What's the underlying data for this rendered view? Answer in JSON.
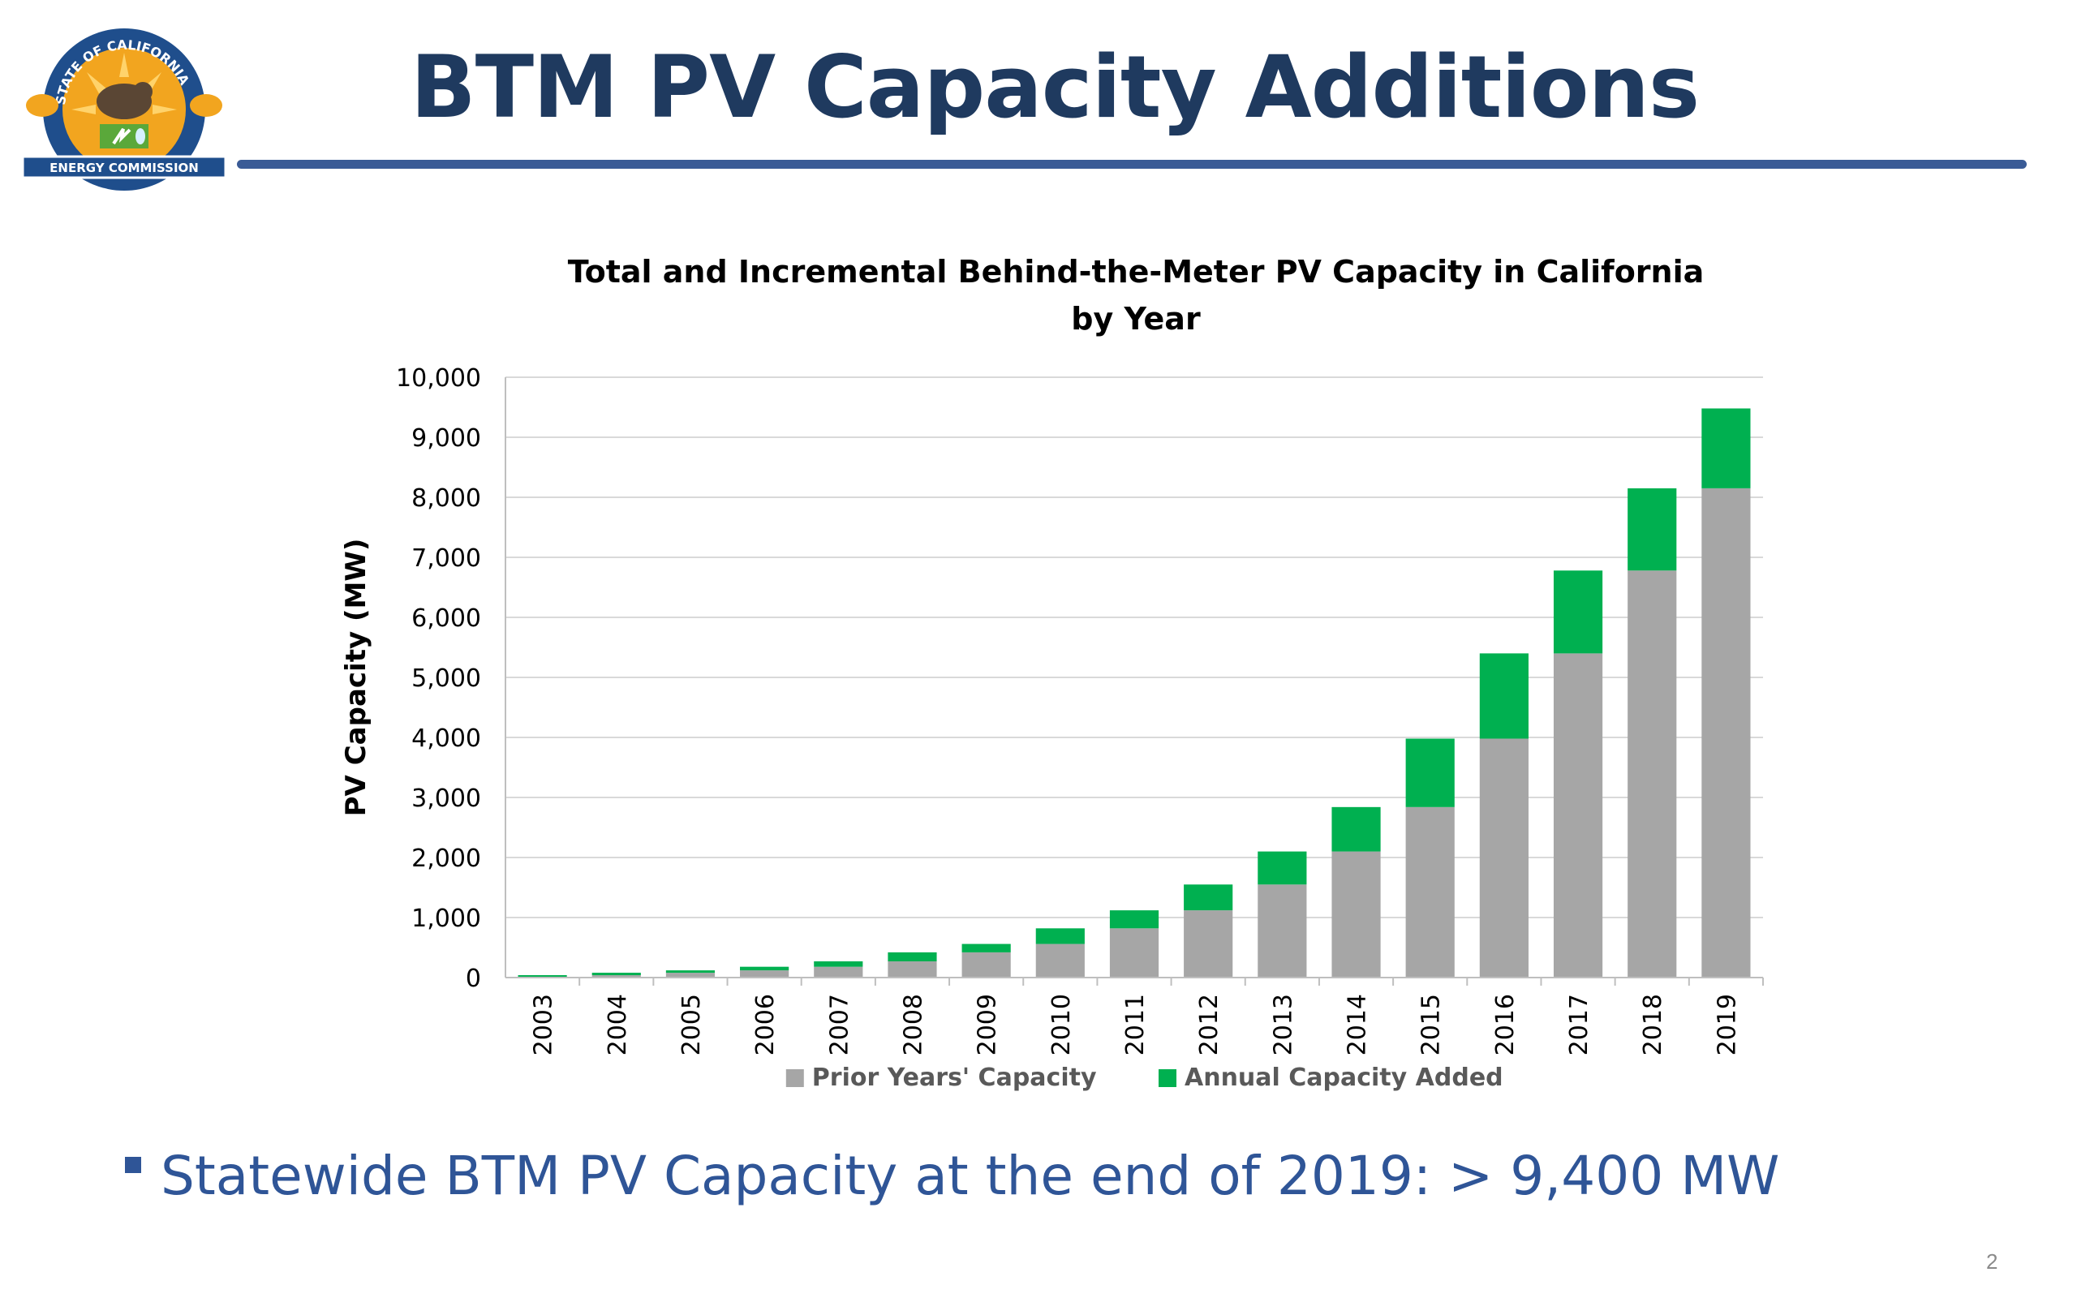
{
  "slide": {
    "title": "BTM PV Capacity Additions",
    "bullet": "Statewide BTM PV Capacity at the end of 2019: > 9,400 MW",
    "page_number": "2"
  },
  "logo": {
    "top_text": "STATE OF CALIFORNIA",
    "banner_text": "ENERGY COMMISSION",
    "colors": {
      "navy": "#1f4e8c",
      "gold": "#f2a51f",
      "green": "#5aa83a"
    }
  },
  "colors": {
    "title": "#1f3a5f",
    "rule": "#3a5b96",
    "bullet": "#2f5597",
    "prior": "#a6a6a6",
    "added": "#00b050",
    "grid": "#d9d9d9"
  },
  "chart_data": {
    "type": "bar",
    "stacked": true,
    "title_lines": [
      "Total and Incremental Behind-the-Meter PV Capacity in California",
      "by Year"
    ],
    "xlabel": "",
    "ylabel": "PV Capacity (MW)",
    "ylim": [
      0,
      10000
    ],
    "yticks": [
      "0",
      "1,000",
      "2,000",
      "3,000",
      "4,000",
      "5,000",
      "6,000",
      "7,000",
      "8,000",
      "9,000",
      "10,000"
    ],
    "grid": true,
    "legend_position": "bottom",
    "categories": [
      "2003",
      "2004",
      "2005",
      "2006",
      "2007",
      "2008",
      "2009",
      "2010",
      "2011",
      "2012",
      "2013",
      "2014",
      "2015",
      "2016",
      "2017",
      "2018",
      "2019"
    ],
    "series": [
      {
        "name": "Prior Years' Capacity",
        "color": "#a6a6a6",
        "values": [
          0,
          40,
          80,
          120,
          180,
          270,
          420,
          560,
          820,
          1120,
          1550,
          2100,
          2840,
          3980,
          5400,
          6780,
          8150
        ]
      },
      {
        "name": "Annual Capacity Added",
        "color": "#00b050",
        "values": [
          40,
          40,
          40,
          60,
          90,
          150,
          140,
          260,
          300,
          430,
          550,
          740,
          1140,
          1420,
          1380,
          1370,
          1330
        ]
      }
    ]
  }
}
